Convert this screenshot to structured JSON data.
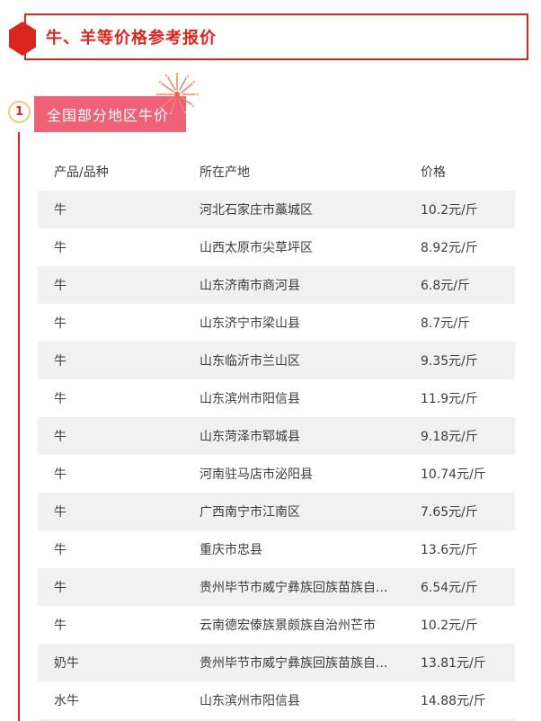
{
  "header": {
    "title": "牛、羊等价格参考报价"
  },
  "section": {
    "number": "1",
    "badge_label": "全国部分地区牛价"
  },
  "table": {
    "columns": [
      "产品/品种",
      "所在产地",
      "价格"
    ],
    "rows": [
      [
        "牛",
        "河北石家庄市藁城区",
        "10.2元/斤"
      ],
      [
        "牛",
        "山西太原市尖草坪区",
        "8.92元/斤"
      ],
      [
        "牛",
        "山东济南市商河县",
        "6.8元/斤"
      ],
      [
        "牛",
        "山东济宁市梁山县",
        "8.7元/斤"
      ],
      [
        "牛",
        "山东临沂市兰山区",
        "9.35元/斤"
      ],
      [
        "牛",
        "山东滨州市阳信县",
        "11.9元/斤"
      ],
      [
        "牛",
        "山东菏泽市郓城县",
        "9.18元/斤"
      ],
      [
        "牛",
        "河南驻马店市泌阳县",
        "10.74元/斤"
      ],
      [
        "牛",
        "广西南宁市江南区",
        "7.65元/斤"
      ],
      [
        "牛",
        "重庆市忠县",
        "13.6元/斤"
      ],
      [
        "牛",
        "贵州毕节市威宁彝族回族苗族自...",
        "6.54元/斤"
      ],
      [
        "牛",
        "云南德宏傣族景颇族自治州芒市",
        "10.2元/斤"
      ],
      [
        "奶牛",
        "贵州毕节市威宁彝族回族苗族自...",
        "13.81元/斤"
      ],
      [
        "水牛",
        "山东滨州市阳信县",
        "14.88元/斤"
      ]
    ]
  },
  "colors": {
    "accent_red": "#d9261f",
    "badge_pink": "#ef6177",
    "gold_ring": "#ecce7e",
    "alt_row_bg": "#f1f1f1",
    "body_text": "#3d3d3d",
    "firework_orange": "#ee8566"
  }
}
